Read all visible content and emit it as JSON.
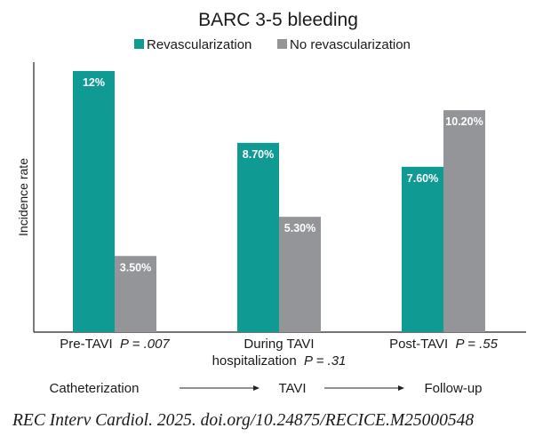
{
  "chart_data": {
    "type": "bar",
    "title": "BARC 3-5 bleeding",
    "ylabel": "Incidence rate",
    "xlabel": "",
    "ylim": [
      0,
      14
    ],
    "grid": false,
    "legend_position": "top",
    "categories": [
      {
        "lines": [
          {
            "text": "Pre-TAVI",
            "p": "P = .007"
          }
        ]
      },
      {
        "lines": [
          {
            "text": "During TAVI",
            "p": ""
          },
          {
            "text": "hospitalization",
            "p": "P = .31"
          }
        ]
      },
      {
        "lines": [
          {
            "text": "Post-TAVI",
            "p": "P = .55"
          }
        ]
      }
    ],
    "series": [
      {
        "name": "Revascularization",
        "color": "#0f9a93",
        "values": [
          12,
          8.7,
          7.6
        ],
        "labels": [
          "12%",
          "8.70%",
          "7.60%"
        ]
      },
      {
        "name": "No revascularization",
        "color": "#939598",
        "values": [
          3.5,
          5.3,
          10.2
        ],
        "labels": [
          "3.50%",
          "5.30%",
          "10.20%"
        ]
      }
    ],
    "flow": [
      "Catheterization",
      "TAVI",
      "Follow-up"
    ]
  },
  "citation": "REC Interv Cardiol. 2025. doi.org/10.24875/RECICE.M25000548"
}
